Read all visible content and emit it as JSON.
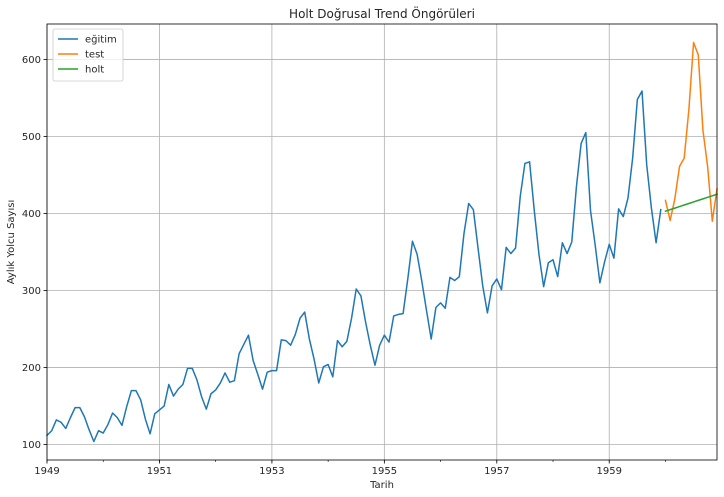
{
  "chart_data": {
    "type": "line",
    "title": "Holt Doğrusal Trend Öngörüleri",
    "xlabel": "Tarih",
    "ylabel": "Aylık Yolcu Sayısı",
    "xlim": [
      "1949-01",
      "1960-12"
    ],
    "ylim": [
      80,
      646
    ],
    "x_ticks": [
      "1949",
      "1951",
      "1953",
      "1955",
      "1957",
      "1959"
    ],
    "y_ticks": [
      100,
      200,
      300,
      400,
      500,
      600
    ],
    "grid": true,
    "legend_position": "top-left",
    "series": [
      {
        "name": "eğitim",
        "color": "#1f77b4",
        "start": "1949-01",
        "values": [
          112,
          118,
          132,
          129,
          121,
          135,
          148,
          148,
          136,
          119,
          104,
          118,
          115,
          126,
          141,
          135,
          125,
          149,
          170,
          170,
          158,
          133,
          114,
          140,
          145,
          150,
          178,
          163,
          172,
          178,
          199,
          199,
          184,
          162,
          146,
          166,
          171,
          180,
          193,
          181,
          183,
          218,
          230,
          242,
          209,
          191,
          172,
          194,
          196,
          196,
          236,
          235,
          229,
          243,
          264,
          272,
          237,
          211,
          180,
          201,
          204,
          188,
          235,
          227,
          234,
          264,
          302,
          293,
          259,
          229,
          203,
          229,
          242,
          233,
          267,
          269,
          270,
          315,
          364,
          347,
          312,
          274,
          237,
          278,
          284,
          277,
          317,
          313,
          318,
          374,
          413,
          405,
          355,
          306,
          271,
          306,
          315,
          301,
          356,
          348,
          355,
          422,
          465,
          467,
          404,
          347,
          305,
          336,
          340,
          318,
          362,
          348,
          363,
          435,
          491,
          505,
          404,
          359,
          310,
          337,
          360,
          342,
          406,
          396,
          420,
          472,
          548,
          559,
          463,
          407,
          362,
          405
        ]
      },
      {
        "name": "test",
        "color": "#ff7f0e",
        "start": "1960-01",
        "values": [
          417,
          391,
          419,
          461,
          472,
          535,
          622,
          606,
          508,
          461,
          390,
          432
        ]
      },
      {
        "name": "holt",
        "color": "#2ca02c",
        "start": "1960-01",
        "values": [
          403,
          405,
          407,
          409,
          411,
          413,
          415,
          417,
          419,
          421,
          423,
          425
        ]
      }
    ]
  }
}
